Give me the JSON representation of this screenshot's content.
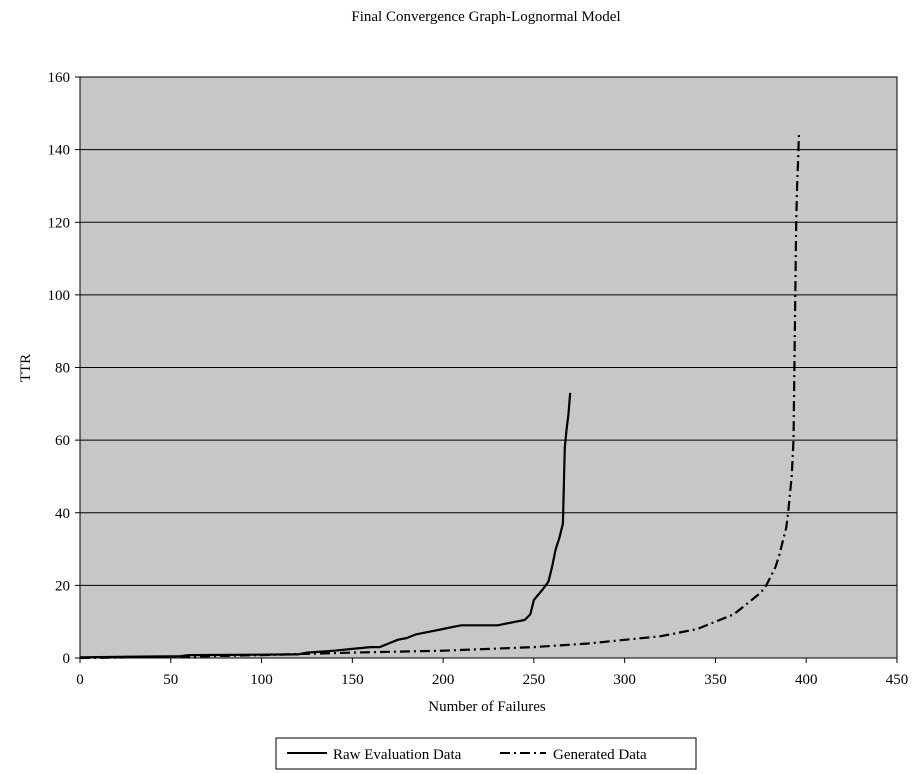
{
  "colors": {
    "plot_background": "#c8c6c9",
    "gridline": "#000000",
    "series_line": "#000000",
    "page_background": "#ffffff"
  },
  "chart_data": {
    "type": "line",
    "title": "Final Convergence Graph-Lognormal Model",
    "xlabel": "Number of Failures",
    "ylabel": "TTR",
    "xlim": [
      0,
      450
    ],
    "ylim": [
      0,
      160
    ],
    "x_ticks": [
      0,
      50,
      100,
      150,
      200,
      250,
      300,
      350,
      400,
      450
    ],
    "y_ticks": [
      0,
      20,
      40,
      60,
      80,
      100,
      120,
      140,
      160
    ],
    "grid": "horizontal",
    "legend_position": "bottom",
    "series": [
      {
        "name": "Raw Evaluation Data",
        "style": "solid",
        "x": [
          0,
          55,
          60,
          120,
          125,
          140,
          150,
          160,
          165,
          170,
          175,
          180,
          185,
          190,
          195,
          200,
          205,
          210,
          220,
          230,
          240,
          245,
          248,
          250,
          255,
          258,
          260,
          262,
          264,
          266,
          267,
          268,
          269,
          270
        ],
        "y": [
          0.2,
          0.5,
          0.8,
          1,
          1.5,
          2,
          2.5,
          3,
          3,
          4,
          5,
          5.5,
          6.5,
          7,
          7.5,
          8,
          8.5,
          9,
          9,
          9,
          10,
          10.5,
          12,
          16,
          19,
          21,
          25,
          30,
          33,
          37,
          58,
          63,
          67,
          73
        ]
      },
      {
        "name": "Generated Data",
        "style": "dashdot",
        "x": [
          0,
          50,
          100,
          130,
          150,
          200,
          250,
          280,
          300,
          320,
          340,
          350,
          360,
          365,
          370,
          375,
          378,
          380,
          383,
          385,
          387,
          389,
          390,
          391,
          392,
          393,
          393.5,
          394,
          394.5,
          395,
          395.5,
          396
        ],
        "y": [
          0,
          0.3,
          0.8,
          1.2,
          1.5,
          2,
          3,
          4,
          5,
          6,
          8,
          10,
          12,
          14,
          16,
          18,
          20,
          22,
          25,
          28,
          32,
          36,
          40,
          45,
          50,
          60,
          80,
          100,
          120,
          130,
          137,
          145
        ]
      }
    ]
  }
}
